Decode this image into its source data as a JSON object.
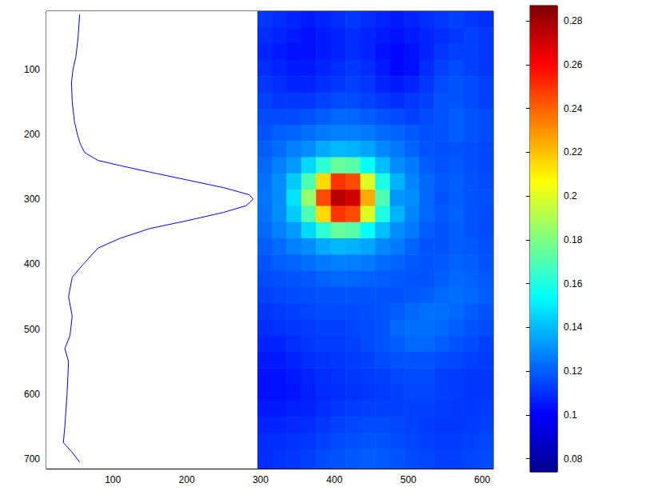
{
  "chart_data": {
    "type": "heatmap",
    "xlim": [
      10,
      615
    ],
    "xticks": [
      100,
      200,
      300,
      400,
      500,
      600
    ],
    "ylim": [
      10,
      715
    ],
    "yticks": [
      100,
      200,
      300,
      400,
      500,
      600,
      700
    ],
    "grid": false,
    "cells": {
      "x_edges": [
        295,
        315,
        335,
        355,
        375,
        395,
        415,
        435,
        455,
        475,
        495,
        515,
        535,
        555,
        575,
        595,
        615
      ],
      "y_edges": [
        10,
        35,
        60,
        85,
        110,
        135,
        160,
        185,
        210,
        235,
        260,
        285,
        310,
        335,
        360,
        385,
        410,
        435,
        460,
        485,
        510,
        535,
        560,
        585,
        610,
        635,
        660,
        685,
        710,
        715
      ],
      "values": [
        [
          0.112,
          0.11,
          0.108,
          0.106,
          0.108,
          0.11,
          0.112,
          0.11,
          0.108,
          0.106,
          0.108,
          0.11,
          0.112,
          0.114,
          0.112,
          0.11
        ],
        [
          0.11,
          0.108,
          0.106,
          0.104,
          0.106,
          0.108,
          0.11,
          0.108,
          0.106,
          0.104,
          0.106,
          0.108,
          0.11,
          0.112,
          0.114,
          0.112
        ],
        [
          0.108,
          0.106,
          0.104,
          0.104,
          0.106,
          0.108,
          0.11,
          0.108,
          0.104,
          0.102,
          0.104,
          0.108,
          0.112,
          0.114,
          0.114,
          0.112
        ],
        [
          0.11,
          0.108,
          0.106,
          0.106,
          0.108,
          0.11,
          0.112,
          0.11,
          0.106,
          0.102,
          0.104,
          0.11,
          0.114,
          0.116,
          0.114,
          0.112
        ],
        [
          0.112,
          0.11,
          0.108,
          0.108,
          0.11,
          0.112,
          0.114,
          0.112,
          0.108,
          0.106,
          0.108,
          0.112,
          0.116,
          0.118,
          0.116,
          0.114
        ],
        [
          0.114,
          0.112,
          0.112,
          0.112,
          0.114,
          0.116,
          0.116,
          0.114,
          0.112,
          0.11,
          0.112,
          0.114,
          0.118,
          0.118,
          0.116,
          0.114
        ],
        [
          0.116,
          0.116,
          0.116,
          0.118,
          0.12,
          0.122,
          0.122,
          0.12,
          0.118,
          0.116,
          0.114,
          0.116,
          0.118,
          0.12,
          0.118,
          0.116
        ],
        [
          0.118,
          0.12,
          0.121,
          0.124,
          0.126,
          0.127,
          0.127,
          0.126,
          0.123,
          0.121,
          0.119,
          0.117,
          0.118,
          0.12,
          0.118,
          0.116
        ],
        [
          0.12,
          0.123,
          0.127,
          0.13,
          0.136,
          0.139,
          0.138,
          0.135,
          0.129,
          0.126,
          0.121,
          0.118,
          0.117,
          0.118,
          0.117,
          0.115
        ],
        [
          0.122,
          0.127,
          0.133,
          0.146,
          0.163,
          0.175,
          0.172,
          0.155,
          0.14,
          0.13,
          0.126,
          0.12,
          0.118,
          0.119,
          0.117,
          0.115
        ],
        [
          0.124,
          0.13,
          0.143,
          0.17,
          0.215,
          0.25,
          0.245,
          0.2,
          0.16,
          0.138,
          0.128,
          0.122,
          0.119,
          0.12,
          0.118,
          0.116
        ],
        [
          0.125,
          0.13,
          0.148,
          0.185,
          0.245,
          0.275,
          0.27,
          0.225,
          0.17,
          0.132,
          0.13,
          0.122,
          0.118,
          0.12,
          0.118,
          0.117
        ],
        [
          0.124,
          0.13,
          0.143,
          0.17,
          0.215,
          0.25,
          0.245,
          0.2,
          0.16,
          0.138,
          0.128,
          0.122,
          0.119,
          0.121,
          0.118,
          0.116
        ],
        [
          0.122,
          0.127,
          0.133,
          0.146,
          0.163,
          0.175,
          0.172,
          0.155,
          0.14,
          0.13,
          0.126,
          0.12,
          0.118,
          0.12,
          0.118,
          0.116
        ],
        [
          0.12,
          0.123,
          0.127,
          0.13,
          0.136,
          0.139,
          0.138,
          0.135,
          0.129,
          0.126,
          0.121,
          0.118,
          0.118,
          0.12,
          0.119,
          0.117
        ],
        [
          0.118,
          0.12,
          0.121,
          0.124,
          0.126,
          0.127,
          0.127,
          0.126,
          0.123,
          0.121,
          0.119,
          0.118,
          0.119,
          0.121,
          0.12,
          0.118
        ],
        [
          0.116,
          0.117,
          0.118,
          0.119,
          0.121,
          0.122,
          0.122,
          0.121,
          0.12,
          0.119,
          0.118,
          0.118,
          0.12,
          0.122,
          0.121,
          0.119
        ],
        [
          0.114,
          0.115,
          0.116,
          0.117,
          0.118,
          0.118,
          0.118,
          0.118,
          0.118,
          0.118,
          0.119,
          0.12,
          0.122,
          0.124,
          0.122,
          0.12
        ],
        [
          0.112,
          0.113,
          0.114,
          0.115,
          0.116,
          0.116,
          0.116,
          0.117,
          0.118,
          0.12,
          0.122,
          0.124,
          0.124,
          0.122,
          0.12,
          0.118
        ],
        [
          0.11,
          0.111,
          0.112,
          0.113,
          0.114,
          0.114,
          0.115,
          0.116,
          0.118,
          0.122,
          0.124,
          0.124,
          0.122,
          0.12,
          0.118,
          0.116
        ],
        [
          0.108,
          0.108,
          0.11,
          0.112,
          0.113,
          0.113,
          0.114,
          0.116,
          0.118,
          0.12,
          0.122,
          0.122,
          0.12,
          0.118,
          0.116,
          0.114
        ],
        [
          0.106,
          0.106,
          0.108,
          0.11,
          0.111,
          0.112,
          0.113,
          0.114,
          0.116,
          0.118,
          0.118,
          0.118,
          0.116,
          0.115,
          0.114,
          0.113
        ],
        [
          0.104,
          0.104,
          0.106,
          0.108,
          0.11,
          0.111,
          0.112,
          0.113,
          0.114,
          0.115,
          0.116,
          0.116,
          0.114,
          0.113,
          0.112,
          0.112
        ],
        [
          0.104,
          0.104,
          0.105,
          0.107,
          0.109,
          0.11,
          0.111,
          0.112,
          0.113,
          0.114,
          0.115,
          0.115,
          0.114,
          0.113,
          0.112,
          0.112
        ],
        [
          0.106,
          0.106,
          0.107,
          0.108,
          0.11,
          0.112,
          0.113,
          0.114,
          0.114,
          0.114,
          0.114,
          0.114,
          0.113,
          0.112,
          0.112,
          0.113
        ],
        [
          0.108,
          0.108,
          0.109,
          0.11,
          0.112,
          0.114,
          0.115,
          0.116,
          0.116,
          0.115,
          0.114,
          0.113,
          0.112,
          0.112,
          0.113,
          0.114
        ],
        [
          0.11,
          0.11,
          0.111,
          0.112,
          0.114,
          0.116,
          0.117,
          0.118,
          0.118,
          0.116,
          0.115,
          0.114,
          0.113,
          0.113,
          0.114,
          0.115
        ],
        [
          0.11,
          0.111,
          0.112,
          0.114,
          0.116,
          0.118,
          0.119,
          0.12,
          0.119,
          0.118,
          0.116,
          0.115,
          0.114,
          0.114,
          0.115,
          0.116
        ],
        [
          0.11,
          0.111,
          0.112,
          0.114,
          0.116,
          0.118,
          0.119,
          0.12,
          0.119,
          0.118,
          0.116,
          0.115,
          0.114,
          0.114,
          0.115,
          0.116
        ]
      ]
    },
    "colorbar": {
      "range": [
        0.074,
        0.287
      ],
      "ticks": [
        0.08,
        0.1,
        0.12,
        0.14,
        0.16,
        0.18,
        0.2,
        0.22,
        0.24,
        0.26,
        0.28
      ]
    },
    "profile": {
      "type": "line",
      "color": "#0000ff",
      "panel_xlim": [
        10,
        295
      ],
      "x": [
        55,
        53,
        50,
        46,
        44,
        45,
        48,
        52,
        56,
        62,
        80,
        110,
        150,
        200,
        250,
        285,
        290,
        280,
        250,
        200,
        150,
        110,
        80,
        60,
        45,
        40,
        45,
        42,
        35,
        40,
        38,
        35,
        33,
        45,
        55
      ],
      "y": [
        15,
        50,
        80,
        100,
        120,
        150,
        180,
        200,
        215,
        228,
        240,
        248,
        258,
        270,
        282,
        293,
        300,
        310,
        320,
        333,
        345,
        360,
        375,
        400,
        420,
        450,
        480,
        510,
        530,
        550,
        600,
        650,
        675,
        690,
        705
      ]
    }
  }
}
